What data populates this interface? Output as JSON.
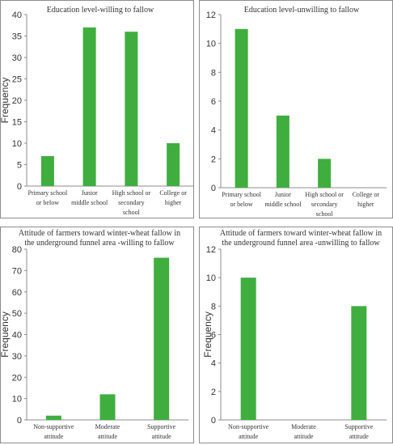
{
  "bar_color": "#3fae3f",
  "chart_data": [
    {
      "type": "bar",
      "title": [
        "Education level-willing to fallow"
      ],
      "ylabel": "Frequency",
      "categories": [
        [
          "Primary school",
          "or below"
        ],
        [
          "Junior",
          "middle school"
        ],
        [
          "High school or",
          "secondary",
          "school"
        ],
        [
          "College or",
          "higher"
        ]
      ],
      "values": [
        7,
        37,
        36,
        10
      ],
      "ylim": [
        0,
        40
      ],
      "yticks": [
        0,
        5,
        10,
        15,
        20,
        25,
        30,
        35,
        40
      ],
      "grid": false
    },
    {
      "type": "bar",
      "title": [
        "Education level-unwilling to fallow"
      ],
      "ylabel": "",
      "categories": [
        [
          "Primary school",
          "or below"
        ],
        [
          "Junior",
          "middle school"
        ],
        [
          "High school or",
          "secondary",
          "school"
        ],
        [
          "College or",
          "higher"
        ]
      ],
      "values": [
        11,
        5,
        2,
        0
      ],
      "ylim": [
        0,
        12
      ],
      "yticks": [
        0,
        2,
        4,
        6,
        8,
        10,
        12
      ],
      "grid": false
    },
    {
      "type": "bar",
      "title": [
        "Attitude of farmers toward winter-wheat fallow in",
        "the underground funnel area -willing to fallow"
      ],
      "ylabel": "Frequency",
      "categories": [
        [
          "Non-supportive",
          "attitude"
        ],
        [
          "Moderate",
          "attitude"
        ],
        [
          "Supportive",
          "attitude"
        ]
      ],
      "values": [
        2,
        12,
        76
      ],
      "ylim": [
        0,
        80
      ],
      "yticks": [
        0,
        10,
        20,
        30,
        40,
        50,
        60,
        70,
        80
      ],
      "grid": false
    },
    {
      "type": "bar",
      "title": [
        "Attitude of farmers toward winter-wheat fallow in",
        "the underground funnel area -unwilling to fallow"
      ],
      "ylabel": "Frequency",
      "categories": [
        [
          "Non-supportive",
          "attitude"
        ],
        [
          "Moderate",
          "attitude"
        ],
        [
          "Supportive",
          "attitude"
        ]
      ],
      "values": [
        10,
        0,
        8
      ],
      "ylim": [
        0,
        12
      ],
      "yticks": [
        0,
        2,
        4,
        6,
        8,
        10,
        12
      ],
      "grid": false
    }
  ]
}
